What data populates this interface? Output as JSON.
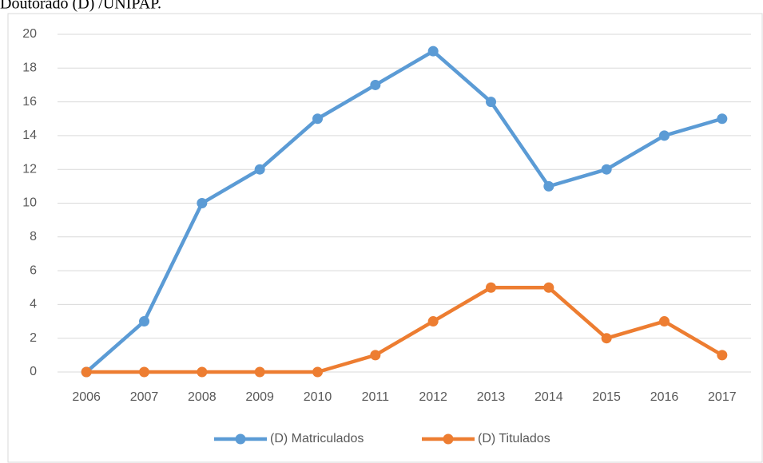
{
  "chart_data": {
    "type": "line",
    "title": "Doutorado (D) /UNIPAP.",
    "categories": [
      "2006",
      "2007",
      "2008",
      "2009",
      "2010",
      "2011",
      "2012",
      "2013",
      "2014",
      "2015",
      "2016",
      "2017"
    ],
    "series": [
      {
        "name": "(D) Matriculados",
        "color": "#5b9bd5",
        "values": [
          0,
          3,
          10,
          12,
          15,
          17,
          19,
          16,
          11,
          12,
          14,
          15
        ]
      },
      {
        "name": "(D) Titulados",
        "color": "#ed7d31",
        "values": [
          0,
          0,
          0,
          0,
          0,
          1,
          3,
          5,
          5,
          2,
          3,
          1
        ]
      }
    ],
    "ylim": [
      0,
      20
    ],
    "yticks": [
      0,
      2,
      4,
      6,
      8,
      10,
      12,
      14,
      16,
      18,
      20
    ],
    "grid": true,
    "legend": "bottom"
  }
}
